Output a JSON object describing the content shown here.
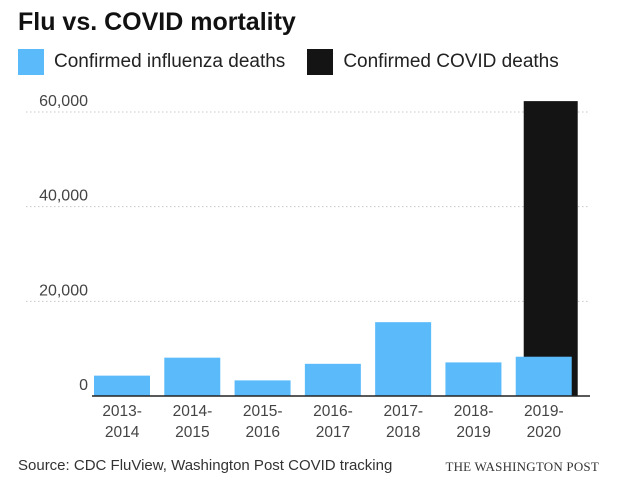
{
  "title": "Flu vs. COVID mortality",
  "legend": [
    {
      "label": "Confirmed influenza deaths",
      "color": "#5bbbfa"
    },
    {
      "label": "Confirmed COVID deaths",
      "color": "#141414"
    }
  ],
  "source": "Source: CDC FluView, Washington Post COVID tracking",
  "credit": "THE WASHINGTON POST",
  "chart_data": {
    "type": "bar",
    "title": "Flu vs. COVID mortality",
    "xlabel": "",
    "ylabel": "",
    "categories": [
      [
        "2013-",
        "2014"
      ],
      [
        "2014-",
        "2015"
      ],
      [
        "2015-",
        "2016"
      ],
      [
        "2016-",
        "2017"
      ],
      [
        "2017-",
        "2018"
      ],
      [
        "2018-",
        "2019"
      ],
      [
        "2019-",
        "2020"
      ]
    ],
    "series": [
      {
        "name": "Confirmed influenza deaths",
        "color": "#5bbbfa",
        "values": [
          4300,
          8100,
          3300,
          6800,
          15600,
          7100,
          8300
        ]
      },
      {
        "name": "Confirmed COVID deaths",
        "color": "#141414",
        "values": [
          null,
          null,
          null,
          null,
          null,
          null,
          62300
        ]
      }
    ],
    "yticks": [
      0,
      20000,
      40000,
      60000
    ],
    "ytick_labels": [
      "0",
      "20,000",
      "40,000",
      "60,000"
    ],
    "ylim": [
      0,
      60000
    ],
    "grid": true,
    "legend_position": "top-left"
  }
}
